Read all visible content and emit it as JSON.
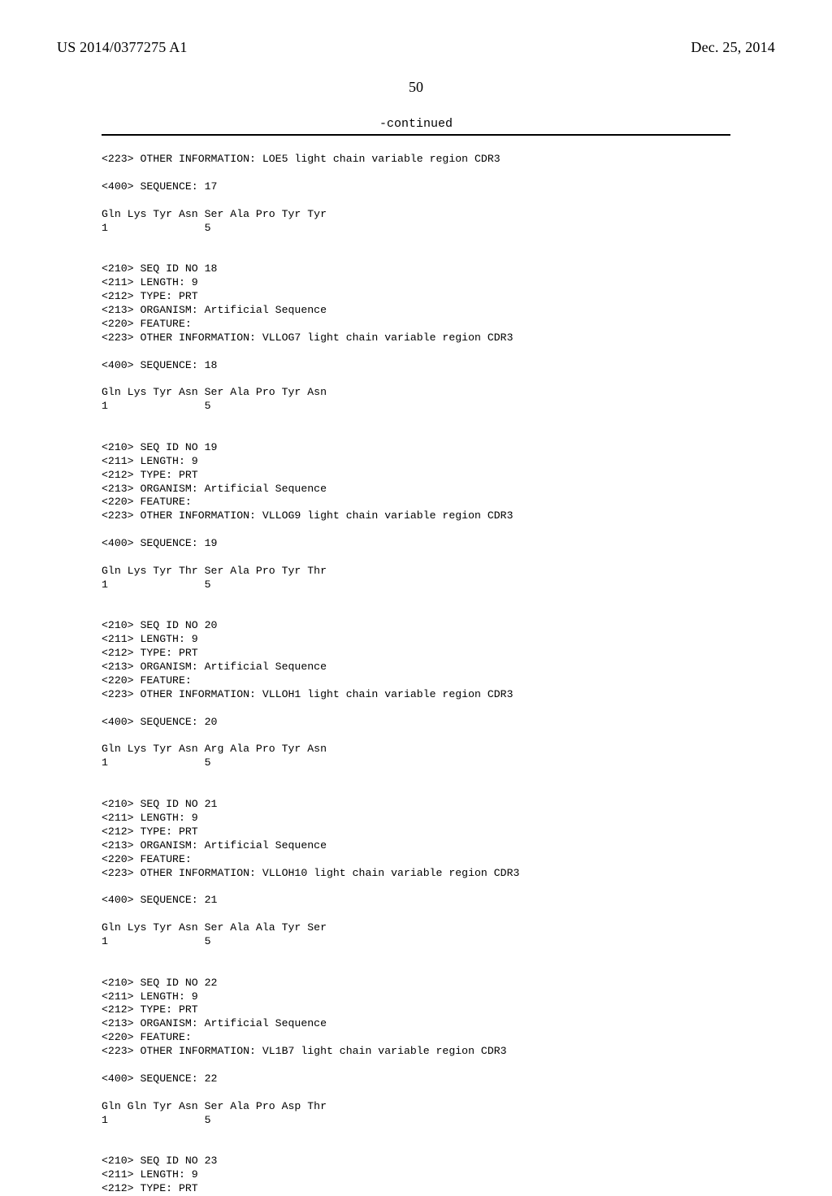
{
  "header": {
    "publication_number": "US 2014/0377275 A1",
    "publication_date": "Dec. 25, 2014"
  },
  "page_number": "50",
  "continued_label": "-continued",
  "listing_lines": [
    "<223> OTHER INFORMATION: LOE5 light chain variable region CDR3",
    "",
    "<400> SEQUENCE: 17",
    "",
    "Gln Lys Tyr Asn Ser Ala Pro Tyr Tyr",
    "1               5",
    "",
    "",
    "<210> SEQ ID NO 18",
    "<211> LENGTH: 9",
    "<212> TYPE: PRT",
    "<213> ORGANISM: Artificial Sequence",
    "<220> FEATURE:",
    "<223> OTHER INFORMATION: VLLOG7 light chain variable region CDR3",
    "",
    "<400> SEQUENCE: 18",
    "",
    "Gln Lys Tyr Asn Ser Ala Pro Tyr Asn",
    "1               5",
    "",
    "",
    "<210> SEQ ID NO 19",
    "<211> LENGTH: 9",
    "<212> TYPE: PRT",
    "<213> ORGANISM: Artificial Sequence",
    "<220> FEATURE:",
    "<223> OTHER INFORMATION: VLLOG9 light chain variable region CDR3",
    "",
    "<400> SEQUENCE: 19",
    "",
    "Gln Lys Tyr Thr Ser Ala Pro Tyr Thr",
    "1               5",
    "",
    "",
    "<210> SEQ ID NO 20",
    "<211> LENGTH: 9",
    "<212> TYPE: PRT",
    "<213> ORGANISM: Artificial Sequence",
    "<220> FEATURE:",
    "<223> OTHER INFORMATION: VLLOH1 light chain variable region CDR3",
    "",
    "<400> SEQUENCE: 20",
    "",
    "Gln Lys Tyr Asn Arg Ala Pro Tyr Asn",
    "1               5",
    "",
    "",
    "<210> SEQ ID NO 21",
    "<211> LENGTH: 9",
    "<212> TYPE: PRT",
    "<213> ORGANISM: Artificial Sequence",
    "<220> FEATURE:",
    "<223> OTHER INFORMATION: VLLOH10 light chain variable region CDR3",
    "",
    "<400> SEQUENCE: 21",
    "",
    "Gln Lys Tyr Asn Ser Ala Ala Tyr Ser",
    "1               5",
    "",
    "",
    "<210> SEQ ID NO 22",
    "<211> LENGTH: 9",
    "<212> TYPE: PRT",
    "<213> ORGANISM: Artificial Sequence",
    "<220> FEATURE:",
    "<223> OTHER INFORMATION: VL1B7 light chain variable region CDR3",
    "",
    "<400> SEQUENCE: 22",
    "",
    "Gln Gln Tyr Asn Ser Ala Pro Asp Thr",
    "1               5",
    "",
    "",
    "<210> SEQ ID NO 23",
    "<211> LENGTH: 9",
    "<212> TYPE: PRT"
  ]
}
